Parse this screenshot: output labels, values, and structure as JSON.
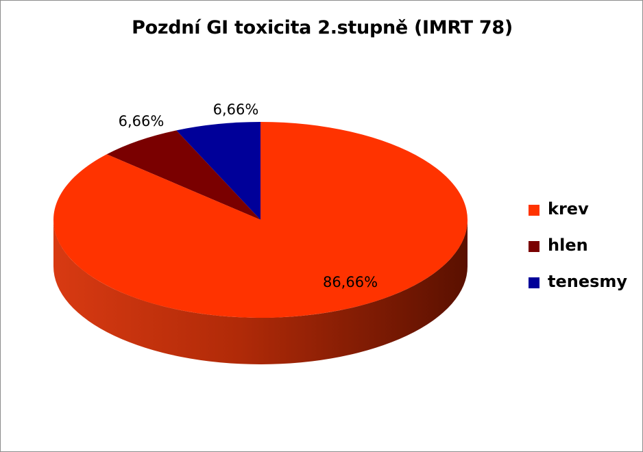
{
  "chart_data": {
    "type": "pie",
    "title": "Pozdní GI toxicita 2.stupně (IMRT 78)",
    "series": [
      {
        "name": "krev",
        "value": 86.66,
        "label": "86,66%",
        "color": "#FF3300"
      },
      {
        "name": "hlen",
        "value": 6.66,
        "label": "6,66%",
        "color": "#7A0000"
      },
      {
        "name": "tenesmy",
        "value": 6.66,
        "label": "6,66%",
        "color": "#000099"
      }
    ],
    "legend_position": "right",
    "style": "3d"
  }
}
